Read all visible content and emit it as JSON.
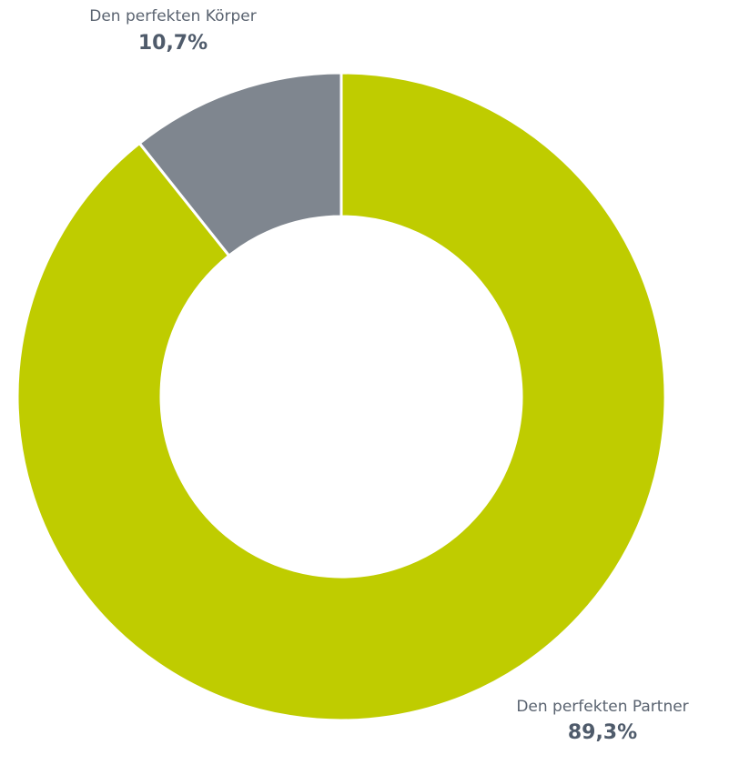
{
  "chart_data": {
    "type": "donut",
    "categories": [
      "Den perfekten Partner",
      "Den perfekten Körper"
    ],
    "values": [
      89.3,
      10.7
    ],
    "value_labels": [
      "89,3%",
      "10,7%"
    ],
    "colors": [
      "#bfcc00",
      "#7f868f"
    ]
  }
}
